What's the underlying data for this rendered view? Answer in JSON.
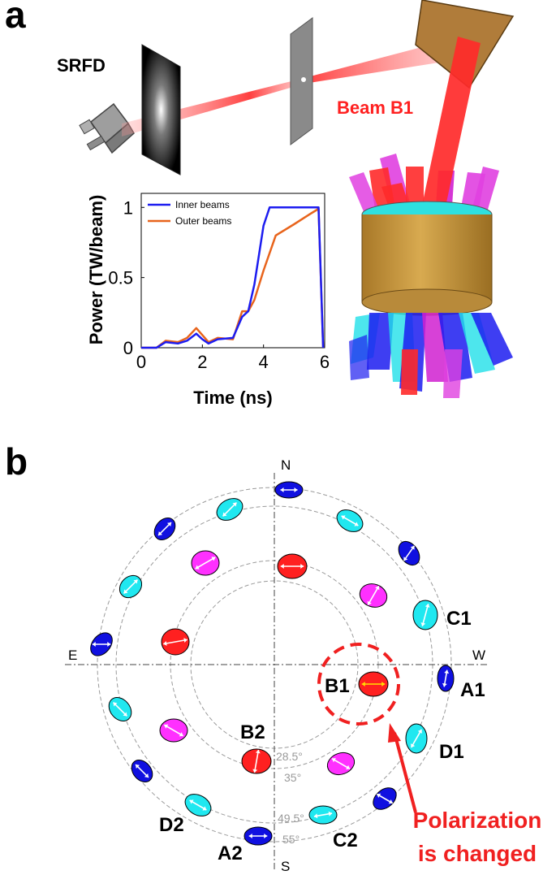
{
  "panel_a": {
    "letter": "a",
    "srfd_label": "SRFD",
    "beam_label": "Beam B1",
    "colors": {
      "beam": "#ff2020",
      "hohlraum": "#c99a3c",
      "inner": "#1c1cf0",
      "outer": "#e8641c"
    }
  },
  "chart_data": {
    "type": "line",
    "xlabel": "Time (ns)",
    "ylabel": "Power (TW/beam)",
    "xlim": [
      0,
      6
    ],
    "ylim": [
      0,
      1.1
    ],
    "xticks": [
      "0",
      "2",
      "4",
      "6"
    ],
    "yticks": [
      "0",
      "0.5",
      "1"
    ],
    "legend_position": "top-left",
    "series": [
      {
        "name": "Inner beams",
        "color": "#1c1cf0",
        "x": [
          0,
          0.5,
          0.8,
          1.2,
          1.5,
          1.8,
          2.0,
          2.2,
          2.5,
          3.0,
          3.3,
          3.5,
          3.7,
          4.0,
          4.2,
          4.5,
          5.0,
          5.5,
          5.8,
          5.95
        ],
        "y": [
          0,
          0,
          0.04,
          0.03,
          0.05,
          0.1,
          0.06,
          0.03,
          0.06,
          0.07,
          0.22,
          0.26,
          0.45,
          0.87,
          1.0,
          1.0,
          1.0,
          1.0,
          1.0,
          0
        ]
      },
      {
        "name": "Outer beams",
        "color": "#e8641c",
        "x": [
          0,
          0.5,
          0.8,
          1.2,
          1.5,
          1.8,
          2.0,
          2.2,
          2.5,
          3.0,
          3.3,
          3.5,
          3.7,
          4.0,
          4.4,
          5.0,
          5.5,
          5.8,
          5.95
        ],
        "y": [
          0,
          0,
          0.05,
          0.04,
          0.07,
          0.14,
          0.09,
          0.04,
          0.07,
          0.06,
          0.26,
          0.26,
          0.34,
          0.55,
          0.8,
          0.88,
          0.95,
          0.99,
          0
        ]
      }
    ]
  },
  "panel_b": {
    "letter": "b",
    "compass": {
      "north": "N",
      "south": "S",
      "east": "E",
      "west": "W"
    },
    "angles": [
      "28.5°",
      "35°",
      "49.5°",
      "55°"
    ],
    "labels": {
      "a1": "A1",
      "a2": "A2",
      "b1": "B1",
      "b2": "B2",
      "c1": "C1",
      "c2": "C2",
      "d1": "D1",
      "d2": "D2"
    },
    "annotation_line1": "Polarization",
    "annotation_line2": "is changed",
    "colors": {
      "cone_28": "#ff2020",
      "cone_35": "#ff30ff",
      "cone_49": "#20e8f0",
      "cone_55": "#1010e0",
      "annotation": "#f02020"
    }
  }
}
